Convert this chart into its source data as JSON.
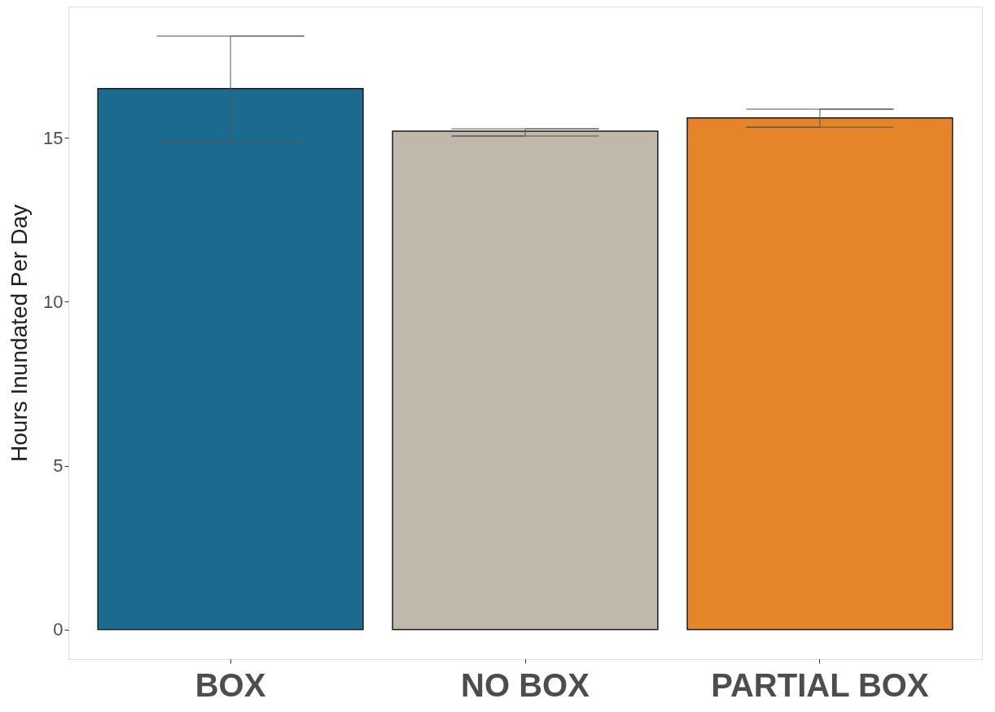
{
  "chart_data": {
    "type": "bar",
    "ylabel": "Hours Inundated Per Day",
    "categories": [
      "BOX",
      "NO BOX",
      "PARTIAL BOX"
    ],
    "values": [
      16.5,
      15.2,
      15.6
    ],
    "colors": [
      "#1b6b90",
      "#c0b8a8",
      "#e58428"
    ],
    "errors": [
      [
        14.9,
        18.1
      ],
      [
        15.05,
        15.27
      ],
      [
        15.32,
        15.87
      ]
    ],
    "ylim": [
      -0.9,
      19
    ],
    "yticks": [
      0,
      5,
      10,
      15
    ],
    "grid": false
  }
}
